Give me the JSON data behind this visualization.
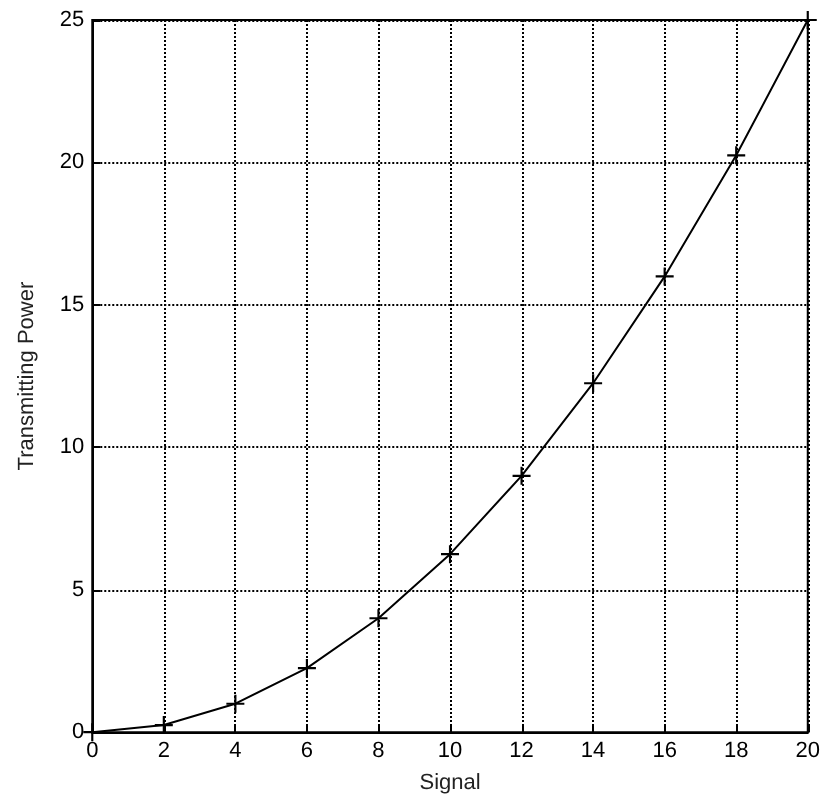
{
  "chart_data": {
    "type": "line",
    "xlabel": "Signal",
    "ylabel": "Transmitting Power",
    "x": [
      0,
      2,
      4,
      6,
      8,
      10,
      12,
      14,
      16,
      18,
      20
    ],
    "series": [
      {
        "color": "#000000",
        "values": [
          0,
          0.25,
          1,
          2.25,
          4,
          6.25,
          9,
          12.25,
          16,
          20.25,
          25
        ]
      }
    ],
    "xlim": [
      0,
      20
    ],
    "xticks": [
      0,
      2,
      4,
      6,
      8,
      10,
      12,
      14,
      16,
      18,
      20
    ],
    "ylim": [
      0,
      25
    ],
    "yticks": [
      0,
      5,
      10,
      15,
      20,
      25
    ],
    "grid": true,
    "marker": "cross",
    "line_style": "solid"
  }
}
